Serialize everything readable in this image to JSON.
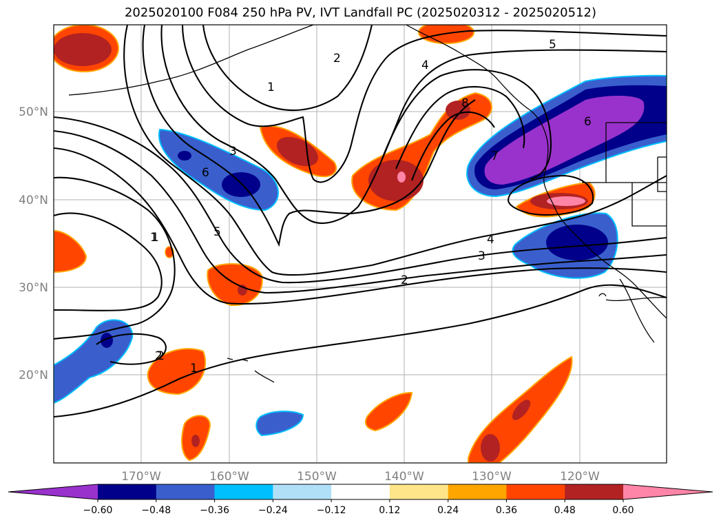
{
  "title": "2025020100 F084 250 hPa PV, IVT Landfall PC (2025020312 - 2025020512)",
  "lat_labels": [
    "50°N",
    "40°N",
    "30°N",
    "20°N"
  ],
  "lon_labels": [
    "170°W",
    "160°W",
    "150°W",
    "140°W",
    "130°W",
    "120°W"
  ],
  "colorbar": {
    "ticks": [
      "−0.60",
      "−0.48",
      "−0.36",
      "−0.24",
      "−0.12",
      "0.12",
      "0.24",
      "0.36",
      "0.48",
      "0.60"
    ],
    "colors": [
      "#9932cc",
      "#00008b",
      "#3a5fcd",
      "#00bfff",
      "#b0e0f8",
      "#ffffff",
      "#ffe58a",
      "#ffa500",
      "#ff4500",
      "#b22222",
      "#ff85a8"
    ]
  },
  "contour_labels": [
    "1",
    "2",
    "2",
    "3",
    "4",
    "5",
    "6",
    "7",
    "8",
    "1",
    "5",
    "6",
    "4",
    "3",
    "2",
    "2",
    "1",
    "1"
  ]
}
